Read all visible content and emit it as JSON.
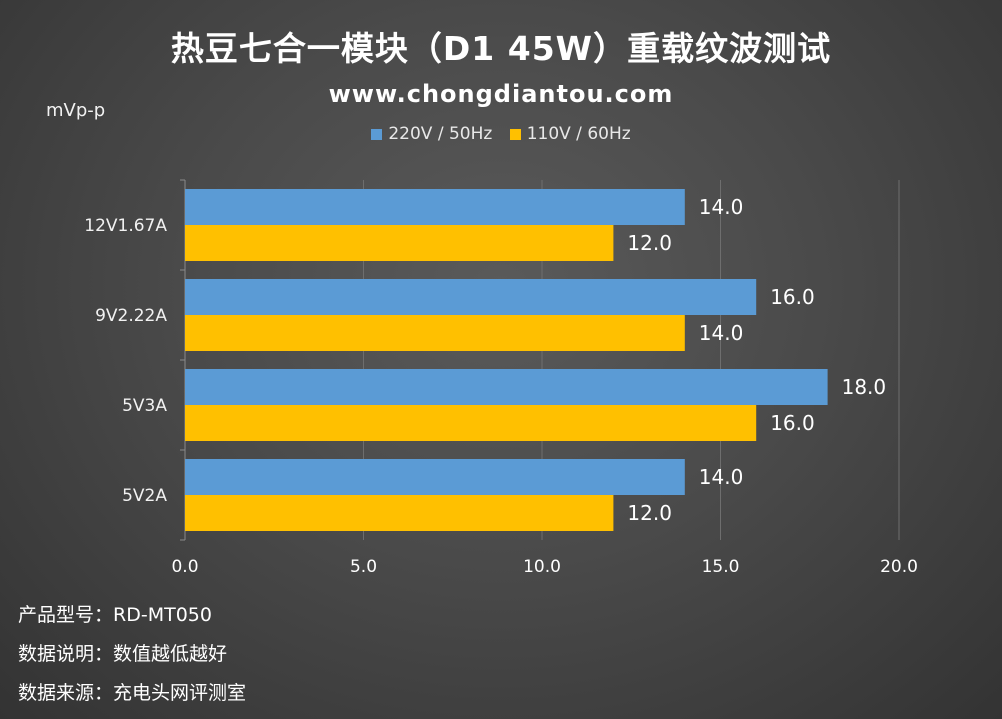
{
  "chart_data": {
    "type": "bar",
    "orientation": "horizontal",
    "title": "热豆七合一模块（D1 45W）重载纹波测试",
    "subtitle": "www.chongdiantou.com",
    "unit_label": "mVp-p",
    "categories": [
      "12V1.67A",
      "9V2.22A",
      "5V3A",
      "5V2A"
    ],
    "series": [
      {
        "name": "220V / 50Hz",
        "color": "#5B9BD5",
        "values": [
          14.0,
          16.0,
          18.0,
          14.0
        ]
      },
      {
        "name": "110V / 60Hz",
        "color": "#FFC000",
        "values": [
          12.0,
          14.0,
          16.0,
          12.0
        ]
      }
    ],
    "xlim": [
      0,
      20
    ],
    "xticks": [
      "0.0",
      "5.0",
      "10.0",
      "15.0",
      "20.0"
    ],
    "xtick_values": [
      0,
      5,
      10,
      15,
      20
    ],
    "grid": true,
    "legend_position": "top"
  },
  "footer": {
    "model_label": "产品型号：",
    "model_value": "RD-MT050",
    "note_label": "数据说明：",
    "note_value": "数值越低越好",
    "source_label": "数据来源：",
    "source_value": "充电头网评测室"
  }
}
